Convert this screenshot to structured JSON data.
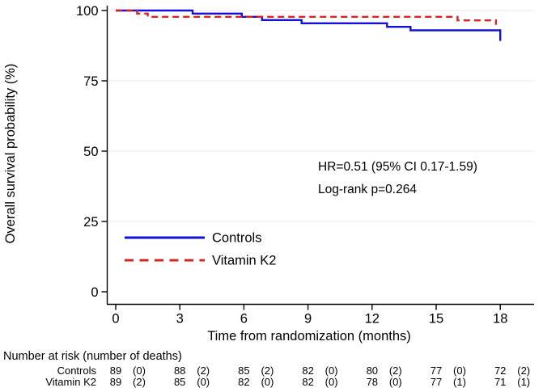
{
  "chart_data": {
    "type": "line",
    "subtype": "kaplan-meier-step",
    "title": "",
    "xlabel": "Time from randomization (months)",
    "ylabel": "Overall survival probability (%)",
    "xlim": [
      0,
      19.6
    ],
    "ylim": [
      0,
      100
    ],
    "xticks": [
      0,
      3,
      6,
      9,
      12,
      15,
      18
    ],
    "yticks": [
      0,
      25,
      50,
      75,
      100
    ],
    "grid": "horizontal-light",
    "legend_position": "lower-left-inside",
    "colors": {
      "controls": "#1212d6",
      "vitamin_k2": "#d62420",
      "grid": "#e9e9e9",
      "axis": "#000000"
    },
    "series": [
      {
        "name": "Controls",
        "color": "#1212d6",
        "style": "solid",
        "steps": [
          [
            0,
            100
          ],
          [
            3.6,
            98.9
          ],
          [
            5.9,
            97.75
          ],
          [
            6.85,
            96.6
          ],
          [
            8.7,
            95.45
          ],
          [
            12.7,
            94.2
          ],
          [
            13.8,
            92.95
          ],
          [
            18.0,
            89.2
          ]
        ]
      },
      {
        "name": "Vitamin K2",
        "color": "#d62420",
        "style": "dashed",
        "steps": [
          [
            0,
            100
          ],
          [
            1.0,
            98.9
          ],
          [
            1.5,
            97.75
          ],
          [
            16.0,
            96.5
          ],
          [
            17.8,
            94.9
          ]
        ]
      }
    ],
    "annotations": [
      "HR=0.51 (95% CI 0.17-1.59)",
      "Log-rank p=0.264"
    ],
    "risk_table": {
      "header": "Number at risk (number of deaths)",
      "timepoints": [
        0,
        3,
        6,
        9,
        12,
        15,
        18
      ],
      "rows": [
        {
          "label": "Controls",
          "at_risk": [
            89,
            88,
            85,
            82,
            80,
            77,
            72
          ],
          "deaths": [
            0,
            2,
            2,
            0,
            2,
            0,
            2
          ]
        },
        {
          "label": "Vitamin K2",
          "at_risk": [
            89,
            85,
            82,
            82,
            78,
            77,
            71
          ],
          "deaths": [
            2,
            0,
            0,
            0,
            0,
            1,
            1
          ]
        }
      ]
    }
  }
}
